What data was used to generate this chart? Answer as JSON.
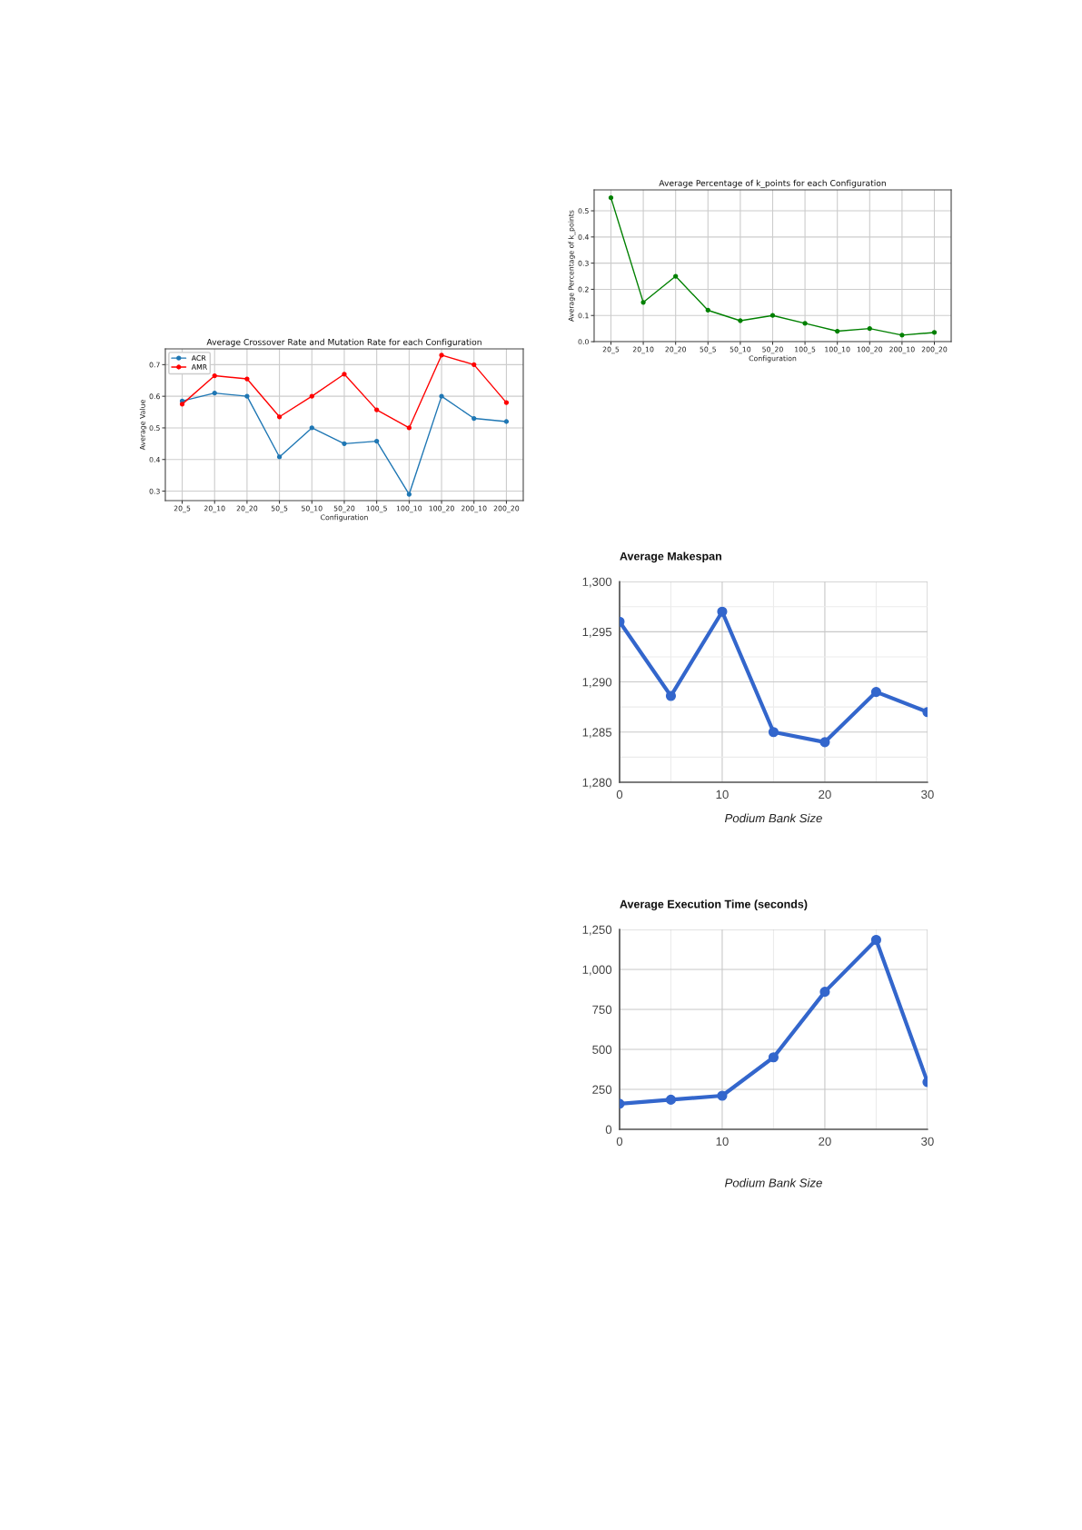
{
  "chart_data": [
    {
      "type": "line",
      "title": "Average Crossover Rate and Mutation Rate for each Configuration",
      "xlabel": "Configuration",
      "ylabel": "Average Value",
      "categories": [
        "20_5",
        "20_10",
        "20_20",
        "50_5",
        "50_10",
        "50_20",
        "100_5",
        "100_10",
        "100_20",
        "200_10",
        "200_20"
      ],
      "series": [
        {
          "name": "ACR",
          "color": "#1f77b4",
          "values": [
            0.585,
            0.61,
            0.6,
            0.408,
            0.5,
            0.45,
            0.458,
            0.29,
            0.6,
            0.53,
            0.52
          ]
        },
        {
          "name": "AMR",
          "color": "#ff0000",
          "values": [
            0.575,
            0.665,
            0.655,
            0.535,
            0.6,
            0.67,
            0.557,
            0.5,
            0.73,
            0.7,
            0.58
          ]
        }
      ],
      "ylim": [
        0.27,
        0.75
      ],
      "yticks": [
        0.3,
        0.4,
        0.5,
        0.6,
        0.7
      ],
      "grid": true,
      "legend": "top left",
      "marker": "circle",
      "line_style": "solid"
    },
    {
      "type": "line",
      "title": "Average Percentage of k_points for each Configuration",
      "xlabel": "Configuration",
      "ylabel": "Average Percentage of k_points",
      "categories": [
        "20_5",
        "20_10",
        "20_20",
        "50_5",
        "50_10",
        "50_20",
        "100_5",
        "100_10",
        "100_20",
        "200_10",
        "200_20"
      ],
      "values": [
        0.55,
        0.15,
        0.25,
        0.12,
        0.08,
        0.1,
        0.07,
        0.04,
        0.05,
        0.025,
        0.035
      ],
      "color": "#008000",
      "ylim": [
        0,
        0.58
      ],
      "yticks": [
        {
          "value": 0,
          "label": "0.0"
        },
        0.1,
        0.2,
        0.3,
        0.4,
        0.5
      ],
      "grid": true,
      "marker": "circle",
      "line_style": "solid"
    },
    {
      "type": "line",
      "title": "Average Makespan",
      "xlabel": "Podium Bank Size",
      "x": [
        0,
        5,
        10,
        15,
        20,
        25,
        30
      ],
      "values": [
        1296,
        1288.6,
        1297,
        1285,
        1284,
        1289,
        1287
      ],
      "color": "#3366cc",
      "xlim": [
        0,
        30
      ],
      "xticks": [
        0,
        {
          "value": 5,
          "label": null
        },
        10,
        {
          "value": 15,
          "label": null
        },
        20,
        {
          "value": 25,
          "label": null
        },
        30
      ],
      "ylim": [
        1280,
        1300
      ],
      "yticks": [
        {
          "value": 1280,
          "label": "1,280"
        },
        {
          "value": 1282.5,
          "label": null
        },
        {
          "value": 1285,
          "label": "1,285"
        },
        {
          "value": 1287.5,
          "label": null
        },
        {
          "value": 1290,
          "label": "1,290"
        },
        {
          "value": 1292.5,
          "label": null
        },
        {
          "value": 1295,
          "label": "1,295"
        },
        {
          "value": 1297.5,
          "label": null
        },
        {
          "value": 1300,
          "label": "1,300"
        }
      ],
      "grid": true,
      "marker": "circle",
      "line_style": "solid"
    },
    {
      "type": "line",
      "title": "Average Execution Time (seconds)",
      "xlabel": "Podium Bank Size",
      "x": [
        0,
        5,
        10,
        15,
        20,
        25,
        30
      ],
      "values": [
        160,
        185,
        210,
        450,
        860,
        1185,
        295
      ],
      "color": "#3366cc",
      "xlim": [
        0,
        30
      ],
      "xticks": [
        0,
        {
          "value": 5,
          "label": null
        },
        10,
        {
          "value": 15,
          "label": null
        },
        20,
        {
          "value": 25,
          "label": null
        },
        30
      ],
      "ylim": [
        0,
        1250
      ],
      "yticks": [
        0,
        250,
        500,
        750,
        {
          "value": 1000,
          "label": "1,000"
        },
        {
          "value": 1250,
          "label": "1,250"
        }
      ],
      "grid": true,
      "marker": "circle",
      "line_style": "solid"
    }
  ]
}
